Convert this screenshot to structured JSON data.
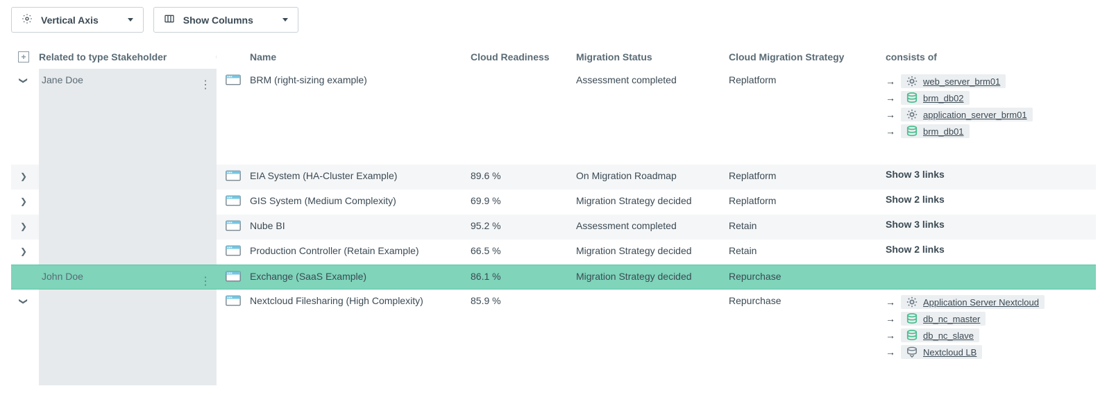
{
  "toolbar": {
    "vertical_axis_label": "Vertical Axis",
    "show_columns_label": "Show Columns"
  },
  "headers": {
    "stakeholder": "Related to type Stakeholder",
    "name": "Name",
    "readiness": "Cloud Readiness",
    "status": "Migration Status",
    "strategy": "Cloud Migration Strategy",
    "consists": "consists of"
  },
  "rows": [
    {
      "toggle": "down",
      "gray": false,
      "highlight": false,
      "stakeholder": "Jane Doe",
      "stakeholder_bg": true,
      "kebab": true,
      "name": "BRM (right-sizing example)",
      "readiness": "",
      "status": "Assessment completed",
      "strategy": "Replatform",
      "consists_mode": "links",
      "links": [
        {
          "icon": "cog",
          "label": "web_server_brm01"
        },
        {
          "icon": "database",
          "label": "brm_db02"
        },
        {
          "icon": "cog",
          "label": "application_server_brm01"
        },
        {
          "icon": "database",
          "label": "brm_db01"
        }
      ]
    },
    {
      "toggle": "right",
      "gray": true,
      "highlight": false,
      "stakeholder": "",
      "stakeholder_bg": true,
      "kebab": false,
      "name": "EIA System (HA-Cluster Example)",
      "readiness": "89.6 %",
      "status": "On Migration Roadmap",
      "strategy": "Replatform",
      "consists_mode": "summary",
      "summary": "Show 3 links"
    },
    {
      "toggle": "right",
      "gray": false,
      "highlight": false,
      "stakeholder": "",
      "stakeholder_bg": true,
      "kebab": false,
      "name": "GIS System (Medium Complexity)",
      "readiness": "69.9 %",
      "status": "Migration Strategy decided",
      "strategy": "Replatform",
      "consists_mode": "summary",
      "summary": "Show 2 links"
    },
    {
      "toggle": "right",
      "gray": true,
      "highlight": false,
      "stakeholder": "",
      "stakeholder_bg": true,
      "kebab": false,
      "name": "Nube BI",
      "readiness": "95.2 %",
      "status": "Assessment completed",
      "strategy": "Retain",
      "consists_mode": "summary",
      "summary": "Show 3 links"
    },
    {
      "toggle": "right",
      "gray": false,
      "highlight": false,
      "stakeholder": "",
      "stakeholder_bg": true,
      "kebab": false,
      "name": "Production Controller (Retain Example)",
      "readiness": "66.5 %",
      "status": "Migration Strategy decided",
      "strategy": "Retain",
      "consists_mode": "summary",
      "summary": "Show 2 links"
    },
    {
      "toggle": "none",
      "gray": false,
      "highlight": true,
      "stakeholder": "John Doe",
      "stakeholder_bg": false,
      "kebab": true,
      "name": "Exchange (SaaS Example)",
      "readiness": "86.1 %",
      "status": "Migration Strategy decided",
      "strategy": "Repurchase",
      "consists_mode": "none"
    },
    {
      "toggle": "down",
      "gray": false,
      "highlight": false,
      "stakeholder": "",
      "stakeholder_bg": true,
      "kebab": false,
      "name": "Nextcloud Filesharing (High Complexity)",
      "readiness": "85.9 %",
      "status": "",
      "strategy": "Repurchase",
      "consists_mode": "links",
      "links": [
        {
          "icon": "cog",
          "label": "Application Server Nextcloud"
        },
        {
          "icon": "database",
          "label": "db_nc_master"
        },
        {
          "icon": "database",
          "label": "db_nc_slave"
        },
        {
          "icon": "lb",
          "label": "Nextcloud LB"
        }
      ]
    }
  ],
  "icons": {
    "database_color": "#4bbf8f",
    "cog_color": "#6b7a84",
    "lb_color": "#6b7a84"
  }
}
